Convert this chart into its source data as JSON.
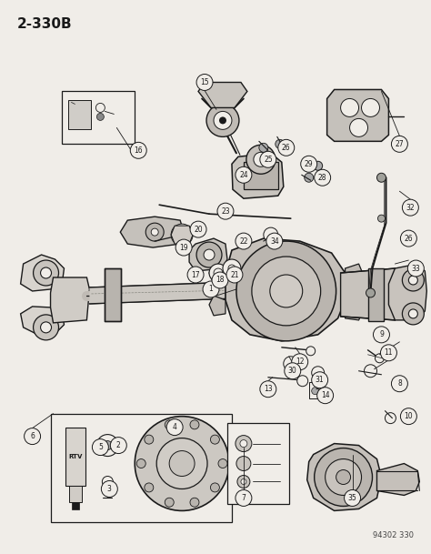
{
  "title": "2-330B",
  "part_number": "94302 330",
  "bg_color": "#f0ede8",
  "line_color": "#1a1a1a",
  "fig_width": 4.74,
  "fig_height": 6.09,
  "dpi": 100
}
